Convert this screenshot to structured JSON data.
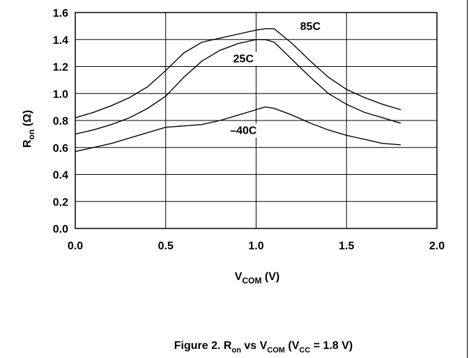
{
  "chart_data": {
    "type": "line",
    "caption": {
      "prefix": "Figure 2. R",
      "ron_sub": "on",
      "mid1": " vs V",
      "vcom_sub": "COM",
      "mid2": " (V",
      "vcc_sub": "CC",
      "suffix": " = 1.8 V)"
    },
    "xlabel": {
      "main": "V",
      "sub": "COM",
      "unit": " (V)"
    },
    "ylabel": {
      "main": "R",
      "sub": "on",
      "unit": " (Ω)"
    },
    "xlim": [
      0,
      2.0
    ],
    "ylim": [
      0,
      1.6
    ],
    "x_ticks": [
      "0.0",
      "0.5",
      "1.0",
      "1.5",
      "2.0"
    ],
    "y_ticks": [
      "0.0",
      "0.2",
      "0.4",
      "0.6",
      "0.8",
      "1.0",
      "1.2",
      "1.4",
      "1.6"
    ],
    "grid": true,
    "series": [
      {
        "name": "85C",
        "x": [
          0.0,
          0.1,
          0.2,
          0.3,
          0.4,
          0.5,
          0.6,
          0.7,
          0.8,
          0.9,
          1.0,
          1.05,
          1.1,
          1.2,
          1.3,
          1.4,
          1.5,
          1.6,
          1.7,
          1.8
        ],
        "y": [
          0.82,
          0.86,
          0.91,
          0.97,
          1.05,
          1.17,
          1.3,
          1.38,
          1.41,
          1.44,
          1.47,
          1.48,
          1.48,
          1.37,
          1.24,
          1.12,
          1.03,
          0.97,
          0.92,
          0.88
        ]
      },
      {
        "name": "25C",
        "x": [
          0.0,
          0.1,
          0.2,
          0.3,
          0.4,
          0.5,
          0.6,
          0.7,
          0.8,
          0.9,
          1.0,
          1.05,
          1.1,
          1.2,
          1.3,
          1.4,
          1.5,
          1.6,
          1.7,
          1.8
        ],
        "y": [
          0.7,
          0.73,
          0.77,
          0.82,
          0.89,
          0.98,
          1.12,
          1.24,
          1.32,
          1.37,
          1.4,
          1.4,
          1.38,
          1.25,
          1.12,
          1.0,
          0.92,
          0.86,
          0.82,
          0.78
        ]
      },
      {
        "name": "–40C",
        "x": [
          0.0,
          0.1,
          0.2,
          0.3,
          0.4,
          0.5,
          0.6,
          0.7,
          0.8,
          0.9,
          1.0,
          1.05,
          1.1,
          1.2,
          1.3,
          1.4,
          1.5,
          1.6,
          1.7,
          1.8
        ],
        "y": [
          0.57,
          0.6,
          0.63,
          0.67,
          0.71,
          0.75,
          0.76,
          0.77,
          0.8,
          0.84,
          0.88,
          0.9,
          0.89,
          0.84,
          0.78,
          0.73,
          0.69,
          0.66,
          0.63,
          0.62
        ]
      }
    ]
  }
}
